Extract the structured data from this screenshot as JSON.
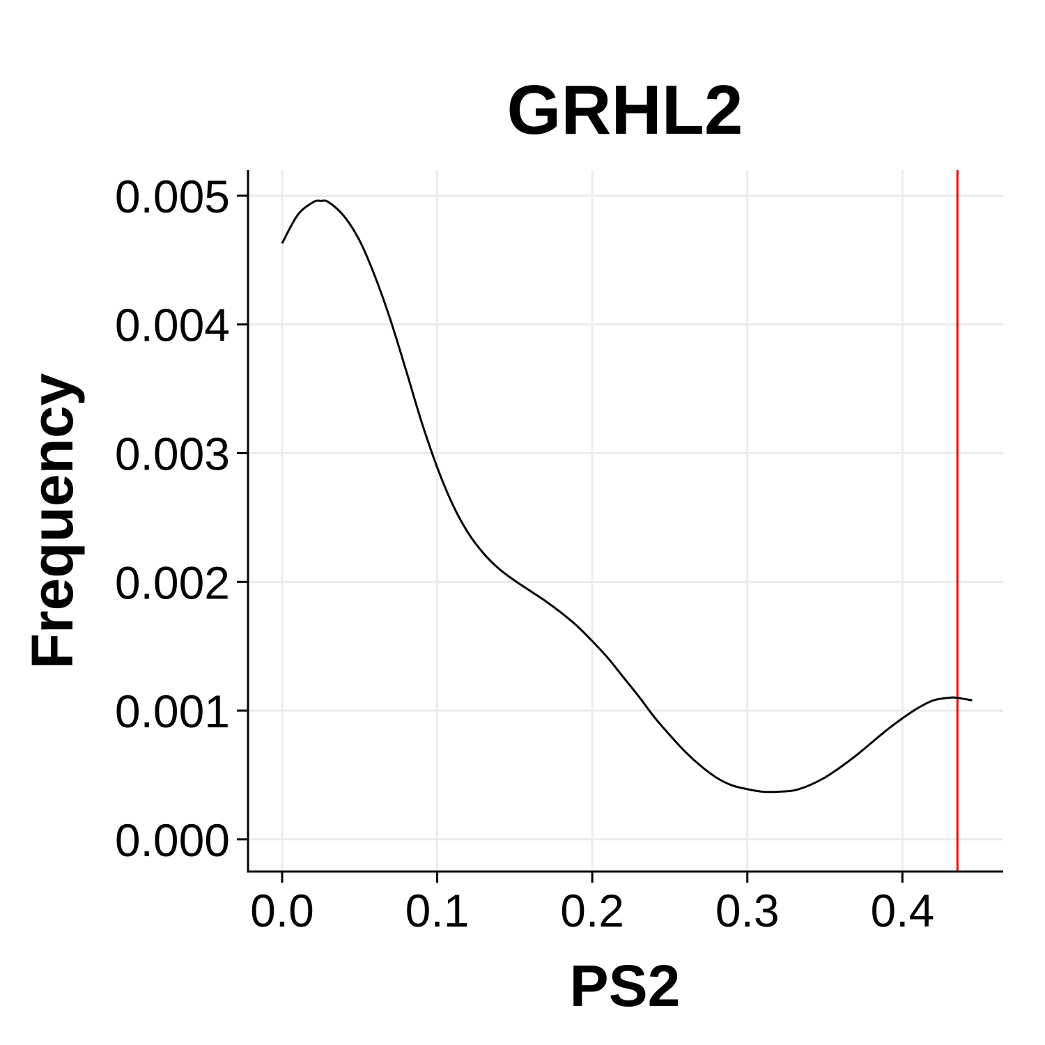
{
  "chart_data": {
    "type": "line",
    "title": "GRHL2",
    "xlabel": "PS2",
    "ylabel": "Frequency",
    "xlim": [
      -0.022,
      0.465
    ],
    "ylim": [
      -0.00025,
      0.0052
    ],
    "x_ticks": [
      0.0,
      0.1,
      0.2,
      0.3,
      0.4
    ],
    "x_tick_labels": [
      "0.0",
      "0.1",
      "0.2",
      "0.3",
      "0.4"
    ],
    "y_ticks": [
      0.0,
      0.001,
      0.002,
      0.003,
      0.004,
      0.005
    ],
    "y_tick_labels": [
      "0.000",
      "0.001",
      "0.002",
      "0.003",
      "0.004",
      "0.005"
    ],
    "grid": true,
    "legend": "none",
    "series": [
      {
        "color": "#000000",
        "x": [
          0.0,
          0.01,
          0.02,
          0.025,
          0.03,
          0.04,
          0.05,
          0.06,
          0.07,
          0.08,
          0.09,
          0.1,
          0.11,
          0.12,
          0.13,
          0.14,
          0.15,
          0.16,
          0.17,
          0.18,
          0.19,
          0.2,
          0.21,
          0.22,
          0.23,
          0.24,
          0.25,
          0.26,
          0.27,
          0.28,
          0.29,
          0.3,
          0.31,
          0.32,
          0.33,
          0.34,
          0.35,
          0.36,
          0.37,
          0.38,
          0.39,
          0.4,
          0.41,
          0.42,
          0.43,
          0.435,
          0.445
        ],
        "y": [
          0.00463,
          0.00485,
          0.00495,
          0.00496,
          0.00495,
          0.00484,
          0.00465,
          0.00437,
          0.00403,
          0.00364,
          0.00324,
          0.00289,
          0.0026,
          0.00238,
          0.00222,
          0.0021,
          0.00201,
          0.00193,
          0.00185,
          0.00176,
          0.00166,
          0.00154,
          0.00141,
          0.00126,
          0.00111,
          0.00095,
          0.00081,
          0.00068,
          0.00057,
          0.00048,
          0.00042,
          0.00039,
          0.00037,
          0.00037,
          0.00038,
          0.00042,
          0.00048,
          0.00056,
          0.00065,
          0.00075,
          0.00085,
          0.00094,
          0.00102,
          0.00108,
          0.0011,
          0.0011,
          0.00108
        ]
      }
    ],
    "reference_line": {
      "x": 0.4355,
      "color": "#ff0000"
    }
  }
}
